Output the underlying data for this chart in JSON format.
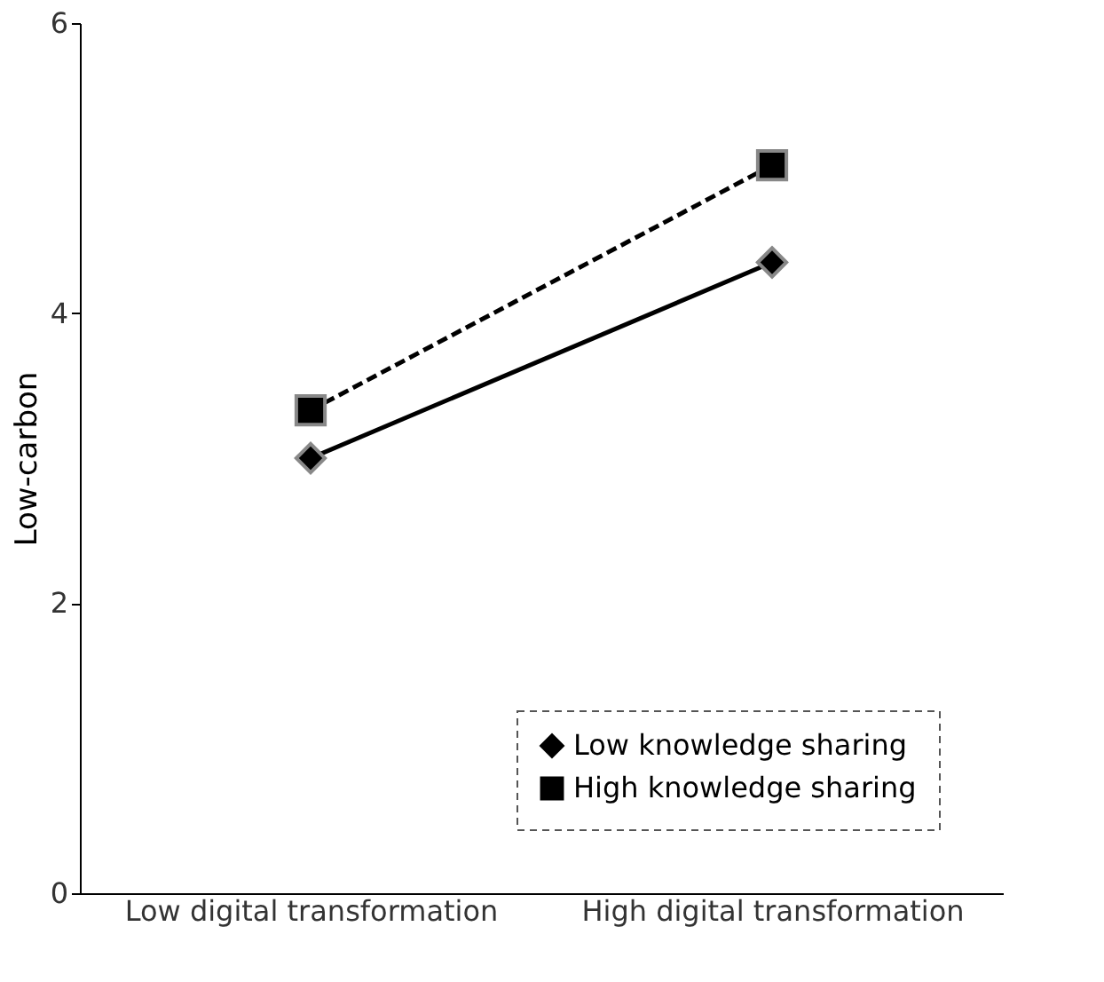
{
  "chart_data": {
    "type": "line",
    "ylabel": "Low-carbon",
    "categories": [
      "Low digital transformation",
      "High digital transformation"
    ],
    "series": [
      {
        "name": "Low knowledge sharing",
        "color": "#000000",
        "values": [
          3.0,
          4.35
        ],
        "marker": "diamond",
        "line_style": "solid"
      },
      {
        "name": "High knowledge sharing",
        "color": "#000000",
        "values": [
          3.33,
          5.02
        ],
        "marker": "square",
        "line_style": "dashed"
      }
    ],
    "ylim": [
      0,
      6
    ],
    "yticks": [
      0,
      2,
      4,
      6
    ],
    "grid": false,
    "legend": "bottom right"
  }
}
